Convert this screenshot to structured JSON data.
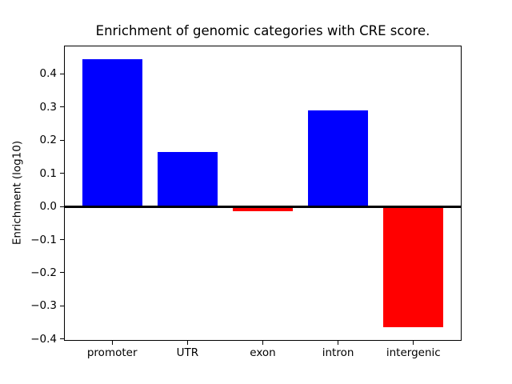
{
  "chart_data": {
    "type": "bar",
    "title": "Enrichment of genomic categories with CRE score.",
    "xlabel": "",
    "ylabel": "Enrichment (log10)",
    "categories": [
      "promoter",
      "UTR",
      "exon",
      "intron",
      "intergenic"
    ],
    "values": [
      0.445,
      0.165,
      -0.015,
      0.29,
      -0.365
    ],
    "positive_color": "#0000ff",
    "negative_color": "#ff0000",
    "axis_color": "#000000",
    "text_color": "#000000",
    "background_color": "#ffffff",
    "bar_width": 0.8,
    "xlim": [
      -0.64,
      4.64
    ],
    "ylim": [
      -0.4055,
      0.4855
    ],
    "yticks": [
      {
        "value": 0.4,
        "label": "0.4"
      },
      {
        "value": 0.3,
        "label": "0.3"
      },
      {
        "value": 0.2,
        "label": "0.2"
      },
      {
        "value": 0.1,
        "label": "0.1"
      },
      {
        "value": 0.0,
        "label": "0.0"
      },
      {
        "value": -0.1,
        "label": "−0.1"
      },
      {
        "value": -0.2,
        "label": "−0.2"
      },
      {
        "value": -0.3,
        "label": "−0.3"
      },
      {
        "value": -0.4,
        "label": "−0.4"
      }
    ],
    "grid": false,
    "legend": "none",
    "zero_line": true
  }
}
